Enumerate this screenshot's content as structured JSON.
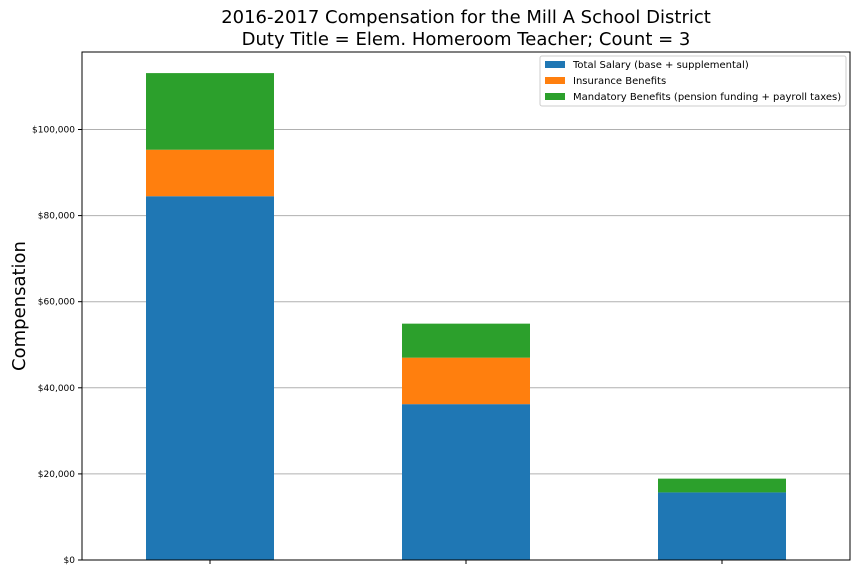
{
  "chart_data": {
    "type": "bar",
    "stacked": true,
    "title": "2016-2017 Compensation for the Mill A School District",
    "subtitle": "Duty Title = Elem. Homeroom Teacher; Count = 3",
    "xlabel": "",
    "ylabel": "Compensation",
    "ylim": [
      0,
      118000
    ],
    "yticks": [
      "$0",
      "$20,000",
      "$40,000",
      "$60,000",
      "$80,000",
      "$100,000"
    ],
    "grid": "horizontal",
    "legend_position": "top-right",
    "categories": [
      "",
      "",
      ""
    ],
    "series": [
      {
        "name": "Total Salary (base + supplemental)",
        "color": "#1f77b4",
        "values": [
          84500,
          36200,
          15700
        ]
      },
      {
        "name": "Insurance Benefits",
        "color": "#ff7f0e",
        "values": [
          10800,
          10800,
          0
        ]
      },
      {
        "name": "Mandatory Benefits (pension funding + payroll taxes)",
        "color": "#2ca02c",
        "values": [
          17800,
          7900,
          3200
        ]
      }
    ]
  }
}
